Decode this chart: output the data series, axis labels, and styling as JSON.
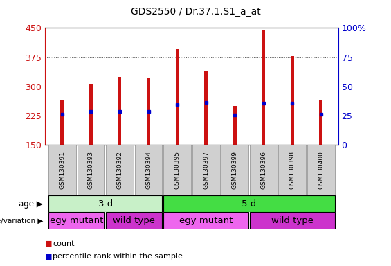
{
  "title": "GDS2550 / Dr.37.1.S1_a_at",
  "samples": [
    "GSM130391",
    "GSM130393",
    "GSM130392",
    "GSM130394",
    "GSM130395",
    "GSM130397",
    "GSM130399",
    "GSM130396",
    "GSM130398",
    "GSM130400"
  ],
  "count_values": [
    265,
    307,
    325,
    322,
    395,
    340,
    250,
    443,
    378,
    265
  ],
  "percentile_values": [
    229,
    236,
    236,
    235,
    254,
    258,
    227,
    257,
    257,
    228
  ],
  "ymin": 150,
  "ymax": 450,
  "yticks": [
    150,
    225,
    300,
    375,
    450
  ],
  "bar_color": "#cc1111",
  "percentile_color": "#0000cc",
  "age_groups": [
    {
      "label": "3 d",
      "start": 0,
      "end": 4,
      "color": "#c8f0c8"
    },
    {
      "label": "5 d",
      "start": 4,
      "end": 10,
      "color": "#44dd44"
    }
  ],
  "genotype_groups": [
    {
      "label": "egy mutant",
      "start": 0,
      "end": 2,
      "color": "#ee66ee"
    },
    {
      "label": "wild type",
      "start": 2,
      "end": 4,
      "color": "#cc33cc"
    },
    {
      "label": "egy mutant",
      "start": 4,
      "end": 7,
      "color": "#ee66ee"
    },
    {
      "label": "wild type",
      "start": 7,
      "end": 10,
      "color": "#cc33cc"
    }
  ],
  "age_label": "age",
  "genotype_label": "genotype/variation",
  "legend_items": [
    {
      "label": "count",
      "color": "#cc1111"
    },
    {
      "label": "percentile rank within the sample",
      "color": "#0000cc"
    }
  ],
  "bar_width": 0.12,
  "grid_color": "#555555",
  "chart_bg": "#ffffff",
  "chart_border": "#000000"
}
